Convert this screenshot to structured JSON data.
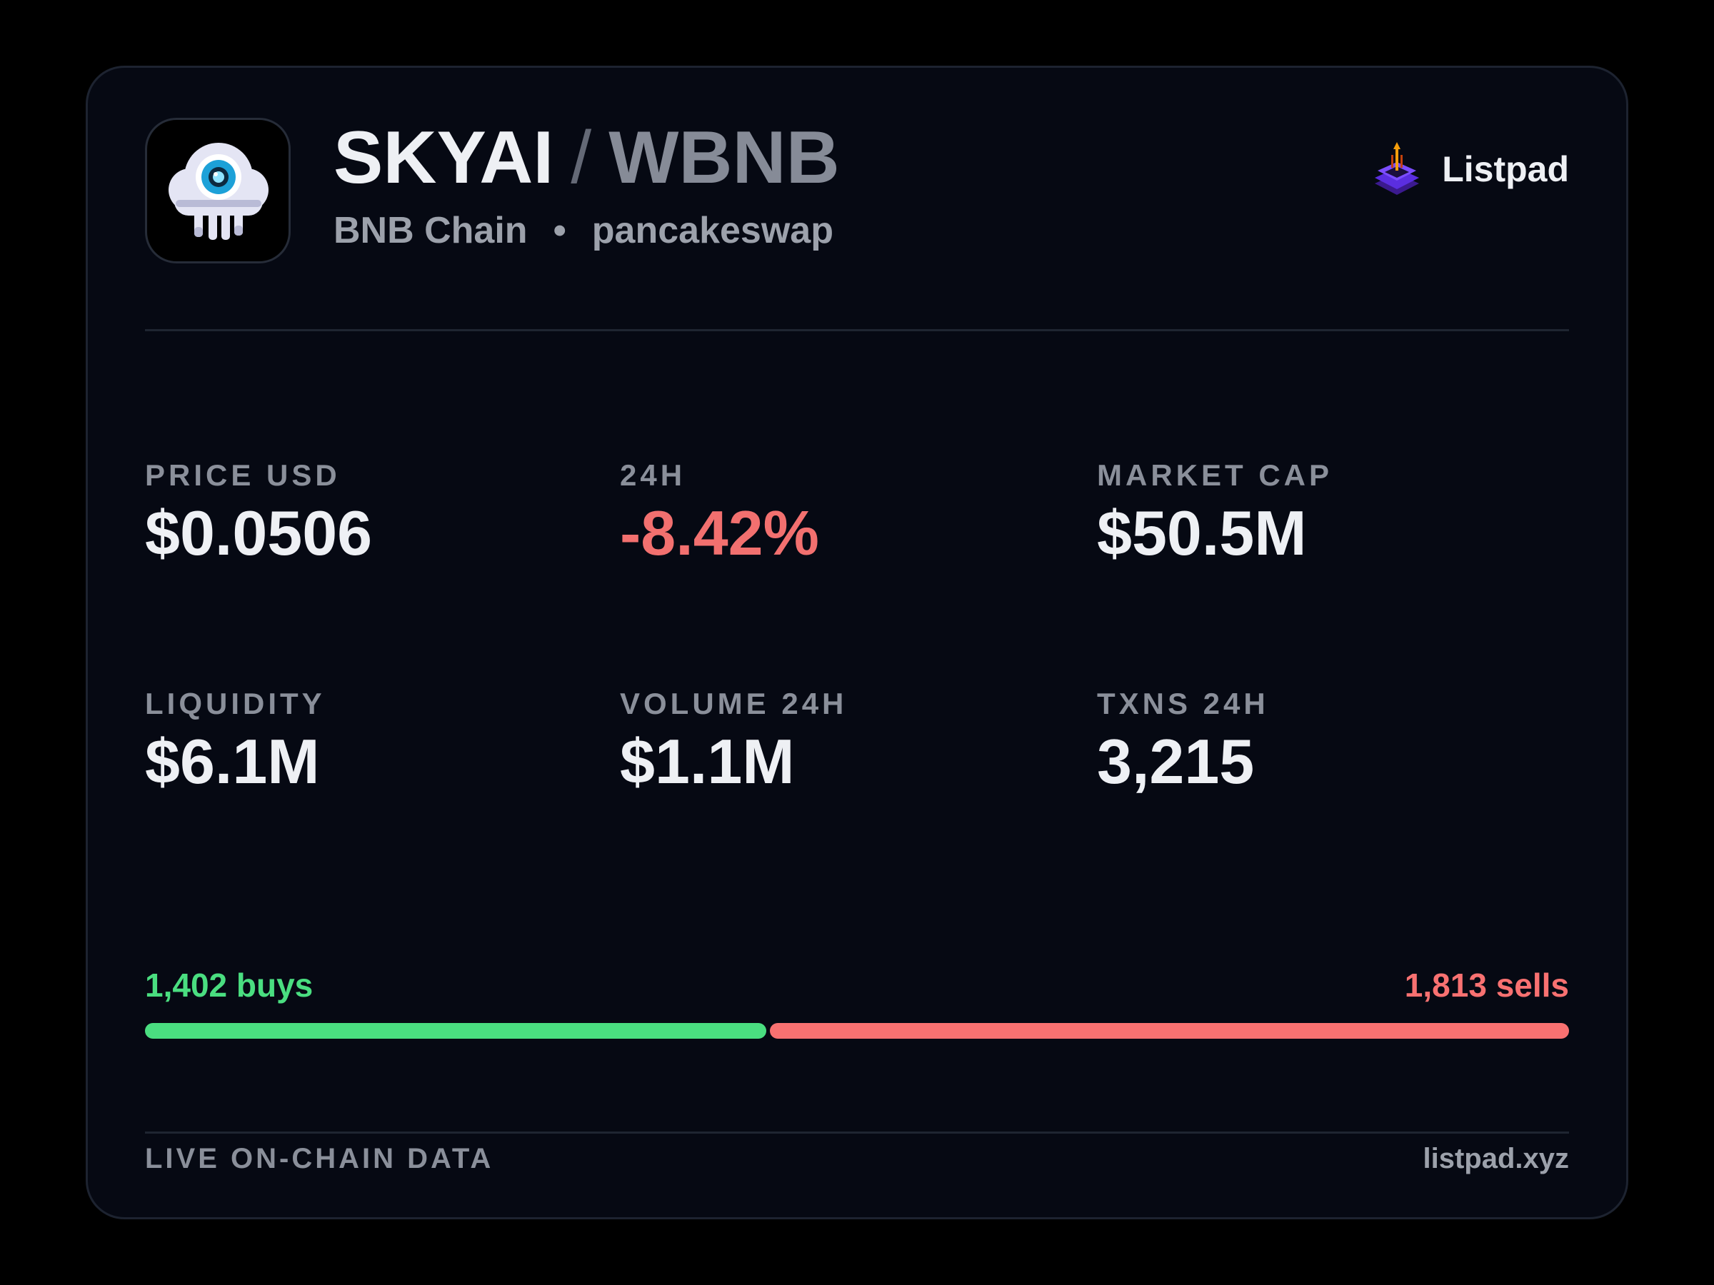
{
  "header": {
    "base_symbol": "SKYAI",
    "separator": "/",
    "quote_symbol": "WBNB",
    "chain": "BNB Chain",
    "bullet": "•",
    "dex": "pancakeswap",
    "avatar_icon": "cyclops-cloud-icon",
    "brand_icon": "listpad-rocket-icon",
    "brand_name": "Listpad"
  },
  "stats": [
    {
      "label": "PRICE USD",
      "value": "$0.0506"
    },
    {
      "label": "24H",
      "value": "-8.42%",
      "negative": true
    },
    {
      "label": "MARKET CAP",
      "value": "$50.5M"
    },
    {
      "label": "LIQUIDITY",
      "value": "$6.1M"
    },
    {
      "label": "VOLUME 24H",
      "value": "$1.1M"
    },
    {
      "label": "TXNS 24H",
      "value": "3,215"
    }
  ],
  "trades": {
    "buys_label": "1,402 buys",
    "sells_label": "1,813 sells",
    "buys": 1402,
    "sells": 1813,
    "buy_color": "#4ade80",
    "sell_color": "#f87171"
  },
  "footer": {
    "left": "LIVE ON-CHAIN DATA",
    "right": "listpad.xyz"
  },
  "colors": {
    "background": "#000000",
    "card": "#060913",
    "negative": "#f2706f"
  }
}
